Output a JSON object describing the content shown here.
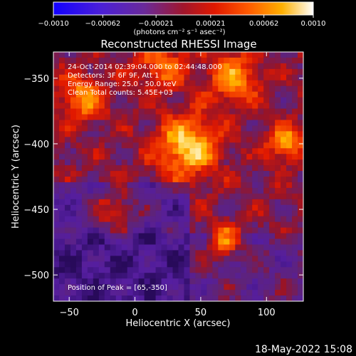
{
  "chart_data": {
    "type": "heatmap",
    "title": "Reconstructed RHESSI Image",
    "xlabel": "Heliocentric X (arcsec)",
    "ylabel": "Heliocentric Y (arcsec)",
    "xlim": [
      -62,
      128
    ],
    "ylim": [
      -520,
      -330
    ],
    "x_ticks": [
      -50,
      0,
      50,
      100
    ],
    "y_ticks": [
      -350,
      -400,
      -450,
      -500
    ],
    "x_tick_labels": [
      "−50",
      "0",
      "50",
      "100"
    ],
    "y_tick_labels": [
      "−350",
      "−400",
      "−450",
      "−500"
    ],
    "colorbar": {
      "range": [
        -0.001,
        0.001
      ],
      "tick_values": [
        -0.001,
        -0.00062,
        -0.00021,
        0.00021,
        0.00062,
        0.001
      ],
      "tick_labels": [
        "−0.0010",
        "−0.00062",
        "−0.00021",
        "0.00021",
        "0.00062",
        "0.0010"
      ],
      "units_label": "(photons cm⁻² s⁻¹ asec⁻²)",
      "colormap": "blue-purple-red-orange-yellow-white"
    },
    "annotations": [
      "24-Oct-2014 02:39:04.000 to 02:44:48.000",
      "Detectors: 3F 6F 9F, Att 1",
      "Energy Range: 25.0 - 50.0 keV",
      "Clean    Total counts: 5.45E+03"
    ],
    "peak_label": "Position of Peak = [65,-350]",
    "peak_position": [
      65,
      -350
    ],
    "grid": false,
    "sources": [
      {
        "x": 40,
        "y": -402,
        "intensity": 1.0,
        "width": 16
      },
      {
        "x": 114,
        "y": -400,
        "intensity": 0.85,
        "width": 9
      },
      {
        "x": -40,
        "y": -365,
        "intensity": 0.75,
        "width": 12
      },
      {
        "x": 68,
        "y": -475,
        "intensity": 0.8,
        "width": 8
      },
      {
        "x": 75,
        "y": -350,
        "intensity": 0.7,
        "width": 14
      },
      {
        "x": -15,
        "y": -450,
        "intensity": 0.6,
        "width": 12
      },
      {
        "x": 20,
        "y": -340,
        "intensity": 0.6,
        "width": 14
      }
    ]
  },
  "footer": {
    "timestamp": "18-May-2022 15:08"
  }
}
